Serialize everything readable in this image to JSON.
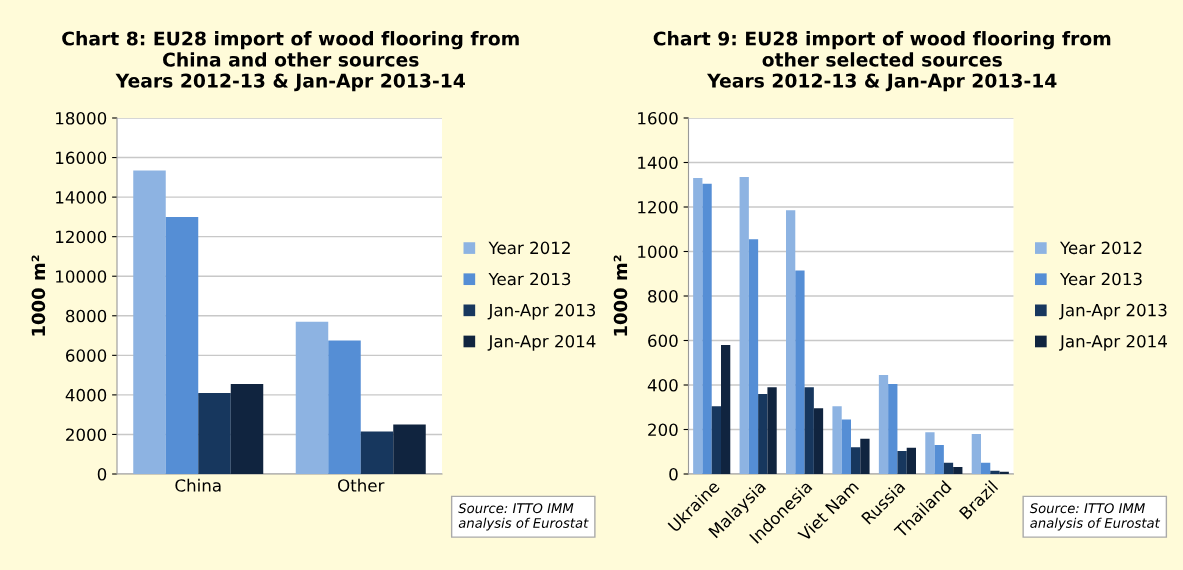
{
  "chart_data": [
    {
      "type": "bar",
      "title": "Chart 8: EU28 import of wood flooring from\nChina and other sources\nYears 2012-13 & Jan-Apr 2013-14",
      "ylabel": "1000 m²",
      "categories": [
        "China",
        "Other"
      ],
      "series": [
        {
          "name": "Year 2012",
          "color": "#8db3e2",
          "values": [
            15350,
            7700
          ]
        },
        {
          "name": "Year 2013",
          "color": "#558ed5",
          "values": [
            13000,
            6750
          ]
        },
        {
          "name": "Jan-Apr 2013",
          "color": "#17375e",
          "values": [
            4100,
            2150
          ]
        },
        {
          "name": "Jan-Apr 2014",
          "color": "#10243f",
          "values": [
            4550,
            2500
          ]
        }
      ],
      "ylim": [
        0,
        18000
      ],
      "yticks": [
        0,
        2000,
        4000,
        6000,
        8000,
        10000,
        12000,
        14000,
        16000,
        18000
      ],
      "grid": "y",
      "legend": "right",
      "annotations": [
        "Source: ITTO IMM\nanalysis of Eurostat"
      ]
    },
    {
      "type": "bar",
      "title": "Chart 9: EU28 import of wood flooring from\nother selected sources\nYears 2012-13 & Jan-Apr 2013-14",
      "ylabel": "1000 m²",
      "categories": [
        "Ukraine",
        "Malaysia",
        "Indonesia",
        "Viet Nam",
        "Russia",
        "Thailand",
        "Brazil"
      ],
      "series": [
        {
          "name": "Year 2012",
          "color": "#8db3e2",
          "values": [
            1330,
            1335,
            1185,
            305,
            445,
            188,
            180
          ]
        },
        {
          "name": "Year 2013",
          "color": "#558ed5",
          "values": [
            1305,
            1055,
            915,
            245,
            405,
            130,
            50
          ]
        },
        {
          "name": "Jan-Apr 2013",
          "color": "#17375e",
          "values": [
            305,
            360,
            390,
            120,
            103,
            50,
            15
          ]
        },
        {
          "name": "Jan-Apr 2014",
          "color": "#10243f",
          "values": [
            580,
            390,
            295,
            158,
            118,
            32,
            10
          ]
        }
      ],
      "ylim": [
        0,
        1600
      ],
      "yticks": [
        0,
        200,
        400,
        600,
        800,
        1000,
        1200,
        1400,
        1600
      ],
      "grid": "y",
      "legend": "right",
      "annotations": [
        "Source: ITTO IMM\nanalysis of Eurostat"
      ]
    }
  ]
}
